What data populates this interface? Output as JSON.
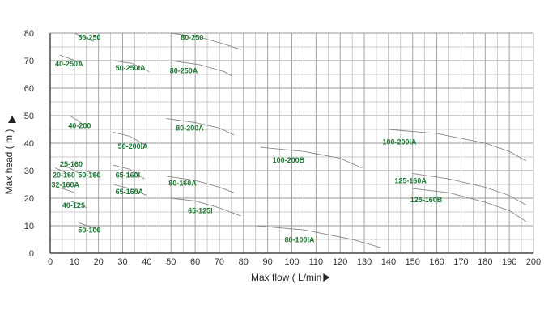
{
  "chart_data": {
    "type": "line",
    "xlabel": "Max flow ( L/min",
    "ylabel": "Max head ( m )",
    "xlim": [
      0,
      200
    ],
    "ylim": [
      0,
      80
    ],
    "xticks": [
      0,
      10,
      20,
      30,
      40,
      50,
      60,
      70,
      80,
      90,
      100,
      110,
      120,
      130,
      140,
      150,
      160,
      170,
      180,
      190,
      200
    ],
    "yticks": [
      0,
      10,
      20,
      30,
      40,
      50,
      60,
      70,
      80
    ],
    "grid": true,
    "colors": {
      "curve": "#888888",
      "label": "#1f7a35",
      "grid": "#9a9a9a",
      "axis": "#222222"
    },
    "series": [
      {
        "name": "50-250",
        "points": [
          [
            10,
            80
          ],
          [
            18,
            77
          ]
        ]
      },
      {
        "name": "80-250",
        "points": [
          [
            50,
            80
          ],
          [
            62,
            78.5
          ],
          [
            72,
            76
          ],
          [
            79,
            74
          ]
        ]
      },
      {
        "name": "40-250A",
        "points": [
          [
            4,
            72
          ],
          [
            12,
            69.5
          ]
        ]
      },
      {
        "name": "50-250IA",
        "points": [
          [
            26,
            70
          ],
          [
            34,
            69
          ],
          [
            41,
            66
          ]
        ]
      },
      {
        "name": "80-250A",
        "points": [
          [
            50,
            70
          ],
          [
            62,
            68.5
          ],
          [
            72,
            66
          ],
          [
            75,
            64.5
          ]
        ]
      },
      {
        "name": "40-200",
        "points": [
          [
            8,
            50
          ],
          [
            12,
            48
          ],
          [
            14,
            46
          ]
        ]
      },
      {
        "name": "80-200A",
        "points": [
          [
            48,
            49
          ],
          [
            60,
            47.5
          ],
          [
            70,
            45.5
          ],
          [
            76,
            43
          ]
        ]
      },
      {
        "name": "50-200IA",
        "points": [
          [
            26,
            44
          ],
          [
            33,
            42.5
          ],
          [
            39,
            39.5
          ]
        ]
      },
      {
        "name": "100-200IA",
        "points": [
          [
            140,
            45
          ],
          [
            160,
            43.5
          ],
          [
            180,
            40
          ],
          [
            190,
            37
          ],
          [
            197,
            33.5
          ]
        ]
      },
      {
        "name": "100-200B",
        "points": [
          [
            87,
            38.5
          ],
          [
            105,
            37
          ],
          [
            120,
            34.5
          ],
          [
            129,
            31
          ]
        ]
      },
      {
        "name": "25-160",
        "points": [
          [
            4,
            32
          ],
          [
            8,
            31
          ],
          [
            12,
            29
          ]
        ]
      },
      {
        "name": "20-160",
        "points": [
          [
            2,
            31
          ],
          [
            6,
            29.5
          ],
          [
            9,
            28
          ]
        ]
      },
      {
        "name": "50-160",
        "points": [
          [
            14,
            30
          ],
          [
            18,
            29
          ],
          [
            21,
            27.5
          ]
        ]
      },
      {
        "name": "32-160A",
        "points": [
          [
            3,
            24
          ],
          [
            7,
            23
          ],
          [
            10,
            22
          ]
        ]
      },
      {
        "name": "65-160I",
        "points": [
          [
            26,
            32
          ],
          [
            33,
            30.5
          ],
          [
            39,
            27
          ]
        ]
      },
      {
        "name": "80-160A",
        "points": [
          [
            48,
            28
          ],
          [
            60,
            26.5
          ],
          [
            70,
            24
          ],
          [
            76,
            22
          ]
        ]
      },
      {
        "name": "125-160A",
        "points": [
          [
            150,
            29
          ],
          [
            165,
            27
          ],
          [
            180,
            24
          ],
          [
            190,
            21
          ],
          [
            197,
            17.5
          ]
        ]
      },
      {
        "name": "65-160A",
        "points": [
          [
            26,
            25
          ],
          [
            33,
            23.5
          ],
          [
            40,
            21
          ]
        ]
      },
      {
        "name": "125-160B",
        "points": [
          [
            150,
            23.5
          ],
          [
            165,
            22
          ],
          [
            180,
            18.5
          ],
          [
            190,
            15.5
          ],
          [
            197,
            11.5
          ]
        ]
      },
      {
        "name": "40-125",
        "points": [
          [
            8,
            19
          ],
          [
            12,
            18
          ],
          [
            15,
            16.5
          ]
        ]
      },
      {
        "name": "65-125I",
        "points": [
          [
            50,
            20
          ],
          [
            60,
            19
          ],
          [
            70,
            16.5
          ],
          [
            79,
            13.5
          ]
        ]
      },
      {
        "name": "50-100",
        "points": [
          [
            12,
            11
          ],
          [
            17,
            9.5
          ],
          [
            21,
            8
          ]
        ]
      },
      {
        "name": "80-100IA",
        "points": [
          [
            85,
            10
          ],
          [
            105,
            8.5
          ],
          [
            125,
            5
          ],
          [
            137,
            2
          ]
        ]
      }
    ],
    "labels": [
      {
        "text": "50-250",
        "x": 11.5,
        "y": 77.5
      },
      {
        "text": "80-250",
        "x": 54,
        "y": 77.5
      },
      {
        "text": "40-250A",
        "x": 2,
        "y": 68
      },
      {
        "text": "50-250IA",
        "x": 27,
        "y": 66.5
      },
      {
        "text": "80-250A",
        "x": 49.5,
        "y": 65.5
      },
      {
        "text": "40-200",
        "x": 7.5,
        "y": 45.5
      },
      {
        "text": "80-200A",
        "x": 52,
        "y": 44.5
      },
      {
        "text": "50-200IA",
        "x": 28,
        "y": 38
      },
      {
        "text": "100-200IA",
        "x": 137.5,
        "y": 39.5
      },
      {
        "text": "100-200B",
        "x": 92,
        "y": 33
      },
      {
        "text": "25-160",
        "x": 4,
        "y": 31.5
      },
      {
        "text": "20-160",
        "x": 1,
        "y": 27.5
      },
      {
        "text": "50-160",
        "x": 11.5,
        "y": 27.5
      },
      {
        "text": "32-160A",
        "x": 0.5,
        "y": 24
      },
      {
        "text": "65-160I",
        "x": 27,
        "y": 27.5
      },
      {
        "text": "80-160A",
        "x": 49,
        "y": 24.5
      },
      {
        "text": "125-160A",
        "x": 142.5,
        "y": 25.5
      },
      {
        "text": "65-160A",
        "x": 27,
        "y": 21.5
      },
      {
        "text": "125-160B",
        "x": 149,
        "y": 18.5
      },
      {
        "text": "40-125",
        "x": 5,
        "y": 16.5
      },
      {
        "text": "65-125I",
        "x": 57,
        "y": 14.5
      },
      {
        "text": "50-100",
        "x": 11.5,
        "y": 7.5
      },
      {
        "text": "80-100IA",
        "x": 97,
        "y": 4
      }
    ]
  }
}
